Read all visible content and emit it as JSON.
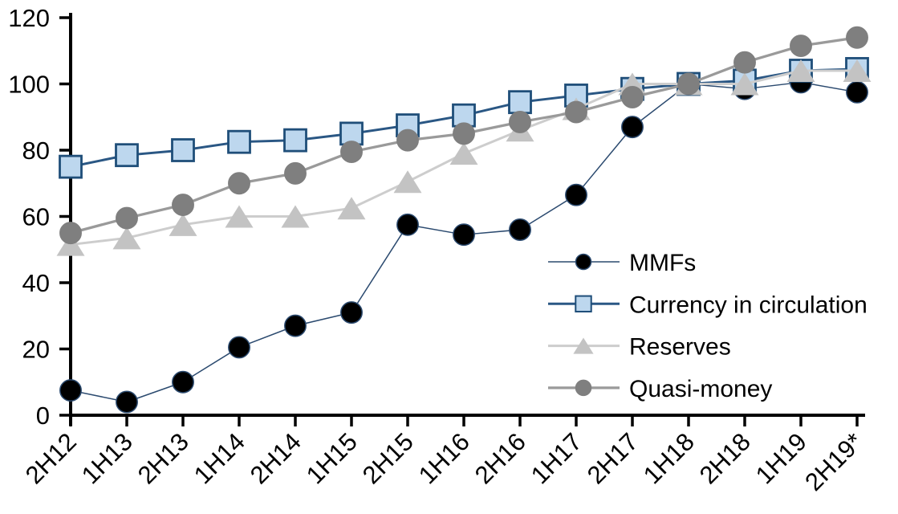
{
  "chart_data": {
    "type": "line",
    "title": "",
    "xlabel": "",
    "ylabel": "",
    "categories": [
      "2H12",
      "1H13",
      "2H13",
      "1H14",
      "2H14",
      "1H15",
      "2H15",
      "1H16",
      "2H16",
      "1H17",
      "2H17",
      "1H18",
      "2H18",
      "1H19",
      "2H19*"
    ],
    "series": [
      {
        "name": "MMFs",
        "marker": "circle",
        "marker_fill": "#000000",
        "marker_stroke": "#2b4a6f",
        "line_color": "#2b4a6f",
        "line_width": 1.5,
        "values": [
          7.5,
          4,
          10,
          20.5,
          27,
          31,
          57.5,
          54.5,
          56,
          66.5,
          87,
          100,
          98.5,
          100.5,
          97.5
        ]
      },
      {
        "name": "Currency in circulation",
        "marker": "square",
        "marker_fill": "#bdd7ee",
        "marker_stroke": "#1f4e79",
        "line_color": "#2a5784",
        "line_width": 3,
        "values": [
          75,
          78.5,
          80,
          82.5,
          83,
          85,
          87.5,
          90.5,
          94.5,
          96.5,
          98.5,
          100,
          101,
          104,
          104.5
        ]
      },
      {
        "name": "Reserves",
        "marker": "triangle",
        "marker_fill": "#c3c3c3",
        "marker_stroke": "#c3c3c3",
        "line_color": "#cdcdcd",
        "line_width": 3,
        "values": [
          51.5,
          53.5,
          57.5,
          60,
          60,
          62.5,
          70.5,
          79,
          86,
          92.5,
          100,
          100,
          100,
          104,
          104
        ]
      },
      {
        "name": "Quasi-money",
        "marker": "circle",
        "marker_fill": "#7f7f7f",
        "marker_stroke": "#7f7f7f",
        "line_color": "#9a9a9a",
        "line_width": 3.3,
        "values": [
          55,
          59.5,
          63.5,
          70,
          73,
          79.5,
          83,
          85,
          88.5,
          91.5,
          96,
          100,
          106.5,
          111.5,
          114
        ]
      }
    ],
    "ylim": [
      0,
      120
    ],
    "ytick_labels": [
      "0",
      "20",
      "40",
      "60",
      "80",
      "100",
      "120"
    ],
    "ytick_step": 20,
    "grid": false,
    "legend_position": "inside-right",
    "legend_order": [
      "MMFs",
      "Currency in circulation",
      "Reserves",
      "Quasi-money"
    ],
    "axis_color": "#000000"
  }
}
